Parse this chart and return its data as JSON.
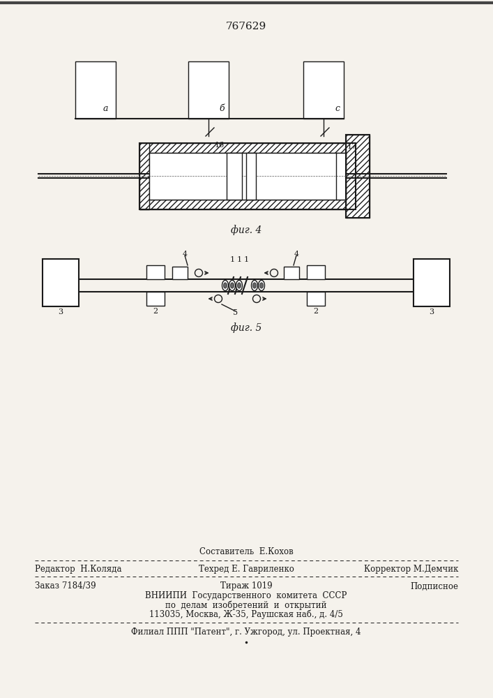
{
  "patent_number": "767629",
  "fig4_caption": "фиг. 4",
  "fig5_caption": "фиг. 5",
  "bg_color": "#f5f2ec",
  "line_color": "#1a1a1a",
  "footer": {
    "sostavitel": "Составитель  Е.Кохов",
    "redaktor": "Редактор  Н.Коляда",
    "tehred": "Техред Е. Гавриленко",
    "korrektor": "Корректор М.Демчик",
    "zakaz": "Заказ 7184/39",
    "tirazh": "Тираж 1019",
    "podpisnoe": "Подписное",
    "vniip1": "ВНИИПИ  Государственного  комитета  СССР",
    "vniip2": "по  делам  изобретений  и  открытий",
    "address": "113035, Москва, Ж-35, Раушская наб., д. 4/5",
    "filial": "Филиал ППП \"Патент\", г. Ужгород, ул. Проектная, 4"
  }
}
